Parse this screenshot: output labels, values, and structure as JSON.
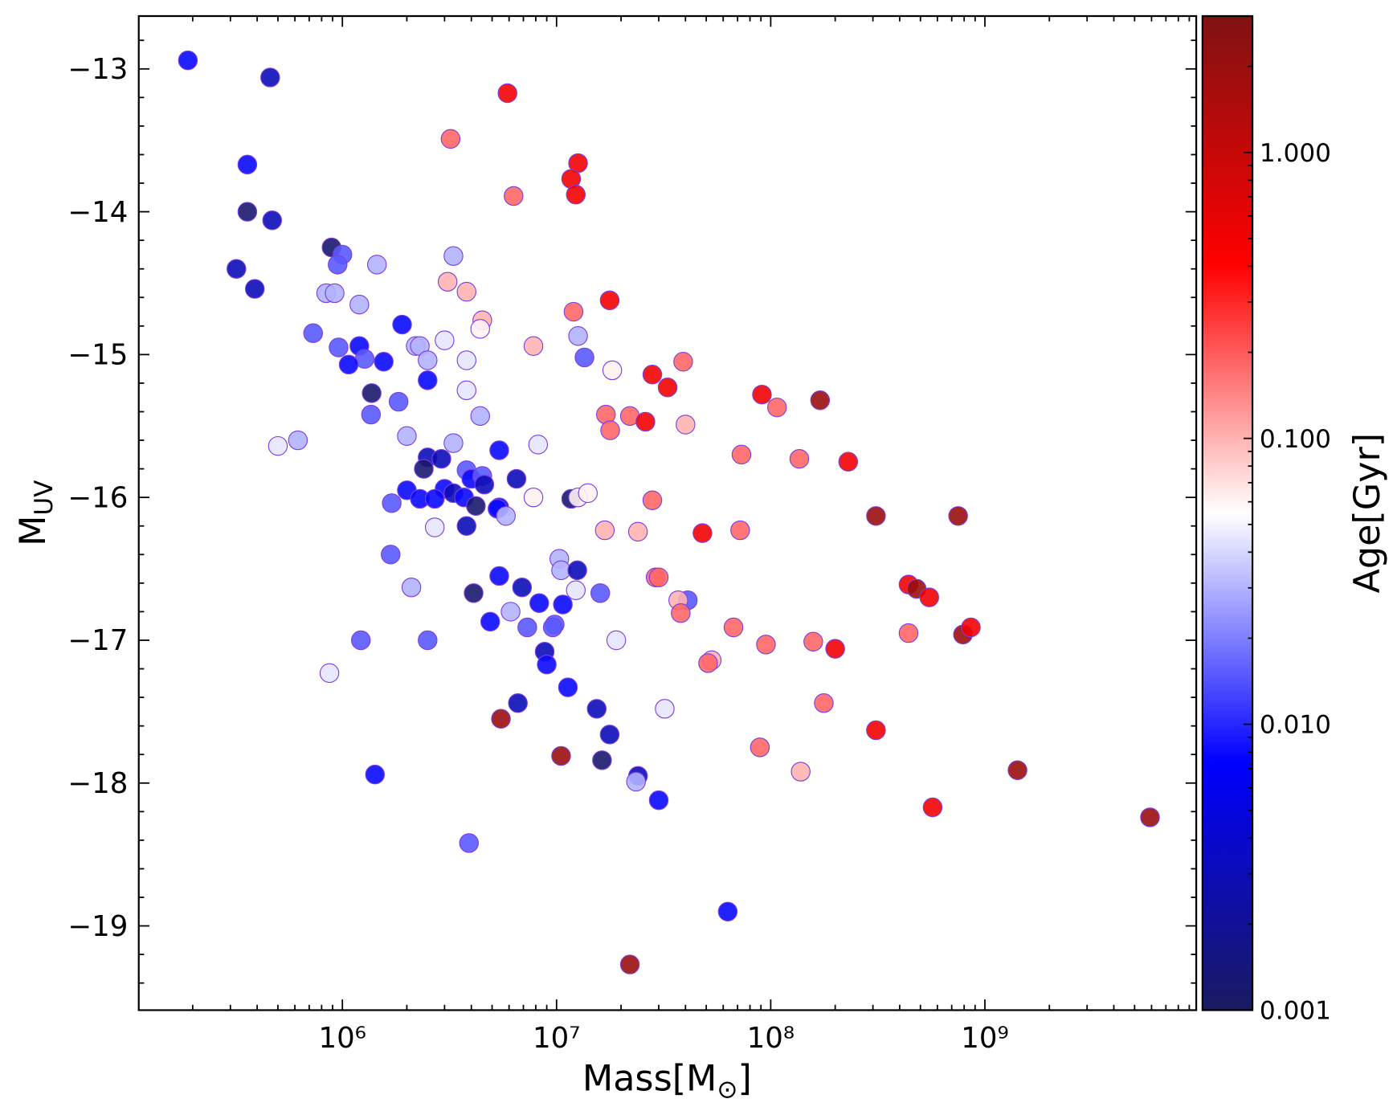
{
  "chart_data": {
    "type": "scatter",
    "xlabel": {
      "main": "Mass[M",
      "sub": "⊙",
      "end": "]"
    },
    "ylabel": {
      "main": "M",
      "sub": "UV"
    },
    "xscale": "log",
    "xlim": [
      112000,
      9700000000
    ],
    "ylim": [
      -19.59,
      -12.63
    ],
    "xticks": [
      {
        "value": 1000000,
        "label": "10⁶"
      },
      {
        "value": 10000000,
        "label": "10⁷"
      },
      {
        "value": 100000000,
        "label": "10⁸"
      },
      {
        "value": 1000000000,
        "label": "10⁹"
      }
    ],
    "xminorticks": [
      200000,
      300000,
      400000,
      500000,
      600000,
      700000,
      800000,
      900000,
      2000000,
      3000000,
      4000000,
      5000000,
      6000000,
      7000000,
      8000000,
      9000000,
      20000000,
      30000000,
      40000000,
      50000000,
      60000000,
      70000000,
      80000000,
      90000000,
      200000000,
      300000000,
      400000000,
      500000000,
      600000000,
      700000000,
      800000000,
      900000000,
      2000000000,
      3000000000,
      4000000000,
      5000000000,
      6000000000,
      7000000000,
      8000000000,
      9000000000
    ],
    "yticks": [
      {
        "value": -19,
        "label": "−19"
      },
      {
        "value": -18,
        "label": "−18"
      },
      {
        "value": -17,
        "label": "−17"
      },
      {
        "value": -16,
        "label": "−16"
      },
      {
        "value": -15,
        "label": "−15"
      },
      {
        "value": -14,
        "label": "−14"
      },
      {
        "value": -13,
        "label": "−13"
      }
    ],
    "yminorticks": [
      -19.4,
      -19.2,
      -18.8,
      -18.6,
      -18.4,
      -18.2,
      -17.8,
      -17.6,
      -17.4,
      -17.2,
      -16.8,
      -16.6,
      -16.4,
      -16.2,
      -15.8,
      -15.6,
      -15.4,
      -15.2,
      -14.8,
      -14.6,
      -14.4,
      -14.2,
      -13.8,
      -13.6,
      -13.4,
      -13.2,
      -12.8
    ],
    "edgecolor": "#7b3fe0",
    "alpha": 0.9,
    "x": [
      190000,
      460000,
      5900000,
      3200000,
      360000,
      12600000,
      11700000,
      12300000,
      6300000,
      360000,
      470000,
      890000,
      1000000,
      950000,
      3300000,
      320000,
      1450000,
      390000,
      840000,
      920000,
      3100000,
      3800000,
      17700000,
      1200000,
      12000000,
      1900000,
      4500000,
      4400000,
      730000,
      12600000,
      3000000,
      960000,
      1200000,
      2200000,
      2300000,
      7800000,
      13500000,
      1270000,
      1070000,
      1560000,
      2500000,
      3800000,
      39000000,
      18200000,
      28000000,
      1370000,
      3800000,
      2500000,
      33000000,
      91000000,
      170000000,
      107000000,
      1830000,
      1360000,
      4400000,
      17000000,
      22000000,
      26000000,
      40000000,
      17800000,
      2000000,
      620000,
      500000,
      3300000,
      8200000,
      5400000,
      73000000,
      136000000,
      230000000,
      2500000,
      2900000,
      2400000,
      3800000,
      4000000,
      4500000,
      4600000,
      6500000,
      2000000,
      3000000,
      3300000,
      2300000,
      2700000,
      3700000,
      7800000,
      11700000,
      12600000,
      14000000,
      28000000,
      1700000,
      4200000,
      5400000,
      5300000,
      5800000,
      310000000,
      750000000,
      3800000,
      2700000,
      16800000,
      24000000,
      48000000,
      72000000,
      1680000,
      10300000,
      10500000,
      12500000,
      5400000,
      29000000,
      30000000,
      12300000,
      6900000,
      2100000,
      440000000,
      480000000,
      550000000,
      4100000,
      16000000,
      41000000,
      37000000,
      38000000,
      6100000,
      10700000,
      8300000,
      4900000,
      7300000,
      9800000,
      9600000,
      67000000,
      440000000,
      790000000,
      860000000,
      1220000,
      2500000,
      19000000,
      95000000,
      158000000,
      200000000,
      8800000,
      9000000,
      53000000,
      51000000,
      870000,
      11300000,
      6600000,
      5500000,
      32000000,
      177000000,
      15400000,
      17700000,
      310000000,
      89000000,
      10500000,
      16300000,
      1420000,
      24000000,
      23500000,
      138000000,
      1420000000,
      30000000,
      570000000,
      5900000000,
      3900000,
      63000000,
      22000000
    ],
    "values": [
      -12.94,
      -13.06,
      -13.17,
      -13.49,
      -13.67,
      -13.66,
      -13.77,
      -13.88,
      -13.89,
      -14.0,
      -14.06,
      -14.25,
      -14.3,
      -14.37,
      -14.31,
      -14.4,
      -14.37,
      -14.54,
      -14.57,
      -14.57,
      -14.49,
      -14.56,
      -14.62,
      -14.65,
      -14.7,
      -14.79,
      -14.76,
      -14.82,
      -14.85,
      -14.87,
      -14.9,
      -14.95,
      -14.94,
      -14.94,
      -14.94,
      -14.94,
      -15.02,
      -15.03,
      -15.07,
      -15.05,
      -15.04,
      -15.04,
      -15.05,
      -15.11,
      -15.14,
      -15.27,
      -15.25,
      -15.18,
      -15.23,
      -15.28,
      -15.32,
      -15.37,
      -15.33,
      -15.42,
      -15.43,
      -15.42,
      -15.43,
      -15.47,
      -15.49,
      -15.53,
      -15.57,
      -15.6,
      -15.64,
      -15.62,
      -15.63,
      -15.67,
      -15.7,
      -15.73,
      -15.75,
      -15.72,
      -15.73,
      -15.8,
      -15.81,
      -15.87,
      -15.85,
      -15.91,
      -15.87,
      -15.95,
      -15.94,
      -15.97,
      -16.01,
      -16.01,
      -16.0,
      -16.0,
      -16.01,
      -16.0,
      -15.97,
      -16.02,
      -16.04,
      -16.06,
      -16.07,
      -16.08,
      -16.13,
      -16.13,
      -16.13,
      -16.2,
      -16.21,
      -16.23,
      -16.24,
      -16.25,
      -16.23,
      -16.4,
      -16.43,
      -16.51,
      -16.51,
      -16.55,
      -16.56,
      -16.56,
      -16.65,
      -16.63,
      -16.63,
      -16.61,
      -16.64,
      -16.7,
      -16.67,
      -16.67,
      -16.72,
      -16.72,
      -16.81,
      -16.8,
      -16.75,
      -16.74,
      -16.87,
      -16.91,
      -16.89,
      -16.91,
      -16.91,
      -16.95,
      -16.96,
      -16.91,
      -17.0,
      -17.0,
      -17.0,
      -17.03,
      -17.01,
      -17.06,
      -17.08,
      -17.17,
      -17.14,
      -17.16,
      -17.23,
      -17.33,
      -17.44,
      -17.55,
      -17.48,
      -17.44,
      -17.48,
      -17.66,
      -17.63,
      -17.75,
      -17.81,
      -17.84,
      -17.94,
      -17.95,
      -17.99,
      -17.92,
      -17.91,
      -18.12,
      -18.17,
      -18.24,
      -18.42,
      -18.9,
      -19.27
    ],
    "c": [
      0.008,
      0.003,
      0.5,
      0.18,
      0.008,
      0.5,
      0.5,
      0.5,
      0.18,
      0.0012,
      0.003,
      0.0012,
      0.015,
      0.015,
      0.03,
      0.003,
      0.03,
      0.003,
      0.03,
      0.03,
      0.1,
      0.1,
      0.5,
      0.03,
      0.18,
      0.008,
      0.1,
      0.06,
      0.015,
      0.03,
      0.045,
      0.015,
      0.008,
      0.03,
      0.03,
      0.1,
      0.015,
      0.015,
      0.008,
      0.008,
      0.03,
      0.045,
      0.18,
      0.06,
      0.5,
      0.0012,
      0.045,
      0.008,
      0.5,
      0.5,
      2.0,
      0.18,
      0.015,
      0.015,
      0.03,
      0.18,
      0.18,
      0.5,
      0.1,
      0.18,
      0.03,
      0.03,
      0.045,
      0.03,
      0.045,
      0.008,
      0.18,
      0.18,
      0.5,
      0.003,
      0.003,
      0.0012,
      0.015,
      0.008,
      0.015,
      0.003,
      0.003,
      0.008,
      0.008,
      0.003,
      0.008,
      0.008,
      0.008,
      0.06,
      0.0012,
      0.06,
      0.06,
      0.18,
      0.015,
      0.0012,
      0.008,
      0.008,
      0.03,
      2.0,
      2.0,
      0.003,
      0.045,
      0.1,
      0.1,
      0.5,
      0.18,
      0.015,
      0.03,
      0.03,
      0.003,
      0.008,
      0.18,
      0.18,
      0.045,
      0.003,
      0.03,
      0.5,
      2.0,
      0.5,
      0.0012,
      0.015,
      0.015,
      0.1,
      0.18,
      0.03,
      0.008,
      0.008,
      0.008,
      0.015,
      0.015,
      0.015,
      0.18,
      0.18,
      2.0,
      0.5,
      0.015,
      0.015,
      0.045,
      0.18,
      0.18,
      0.5,
      0.003,
      0.008,
      0.1,
      0.18,
      0.045,
      0.008,
      0.003,
      2.0,
      0.045,
      0.18,
      0.003,
      0.003,
      0.5,
      0.18,
      2.0,
      0.0012,
      0.008,
      0.003,
      0.03,
      0.1,
      2.0,
      0.008,
      0.5,
      2.0,
      0.015,
      0.008,
      2.0
    ],
    "colorbar": {
      "label": "Age[Gyr]",
      "scale": "log",
      "lim": [
        0.001,
        3
      ],
      "ticks": [
        0.001,
        {
          "value": 0.01,
          "label": "0.010"
        },
        {
          "value": 0.1,
          "label": "0.100"
        },
        {
          "value": 1,
          "label": "1.000"
        }
      ],
      "minorticks": [
        0.002,
        0.003,
        0.004,
        0.005,
        0.006,
        0.007,
        0.008,
        0.009,
        0.02,
        0.03,
        0.04,
        0.05,
        0.06,
        0.07,
        0.08,
        0.09,
        0.2,
        0.3,
        0.4,
        0.5,
        0.6,
        0.7,
        0.8,
        0.9,
        2
      ],
      "colormap": [
        "#1a1a60",
        "#0000ff",
        "#ffffff",
        "#ff0000",
        "#801212"
      ]
    }
  }
}
